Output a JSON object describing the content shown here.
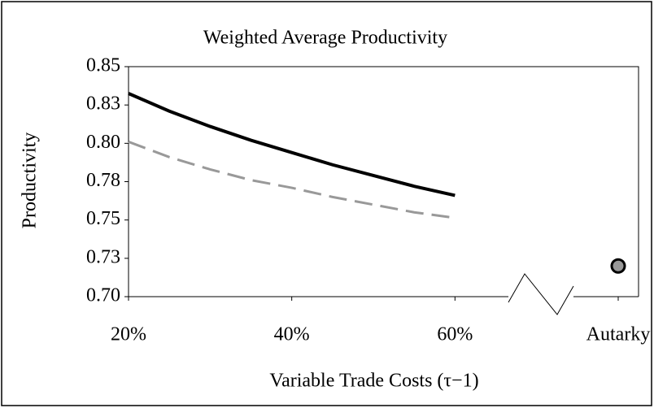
{
  "chart_data": {
    "type": "line",
    "title": "Weighted Average Productivity",
    "xlabel": "Variable Trade Costs (τ−1)",
    "ylabel": "Productivity",
    "xlim": [
      20,
      80
    ],
    "xticks": [
      {
        "value": 20,
        "label": "20%"
      },
      {
        "value": 40,
        "label": "40%"
      },
      {
        "value": 60,
        "label": "60%"
      },
      {
        "value": 80,
        "label": "Autarky"
      }
    ],
    "ylim": [
      0.7,
      0.85
    ],
    "yticks": [
      {
        "value": 0.7,
        "label": "0.70"
      },
      {
        "value": 0.725,
        "label": "0.73"
      },
      {
        "value": 0.75,
        "label": "0.75"
      },
      {
        "value": 0.775,
        "label": "0.78"
      },
      {
        "value": 0.8,
        "label": "0.80"
      },
      {
        "value": 0.825,
        "label": "0.83"
      },
      {
        "value": 0.85,
        "label": "0.85"
      }
    ],
    "series": [
      {
        "color": "#000000",
        "style": "solid",
        "x": [
          20,
          25,
          30,
          35,
          40,
          45,
          50,
          55,
          60
        ],
        "values": [
          0.8325,
          0.821,
          0.811,
          0.802,
          0.794,
          0.786,
          0.779,
          0.772,
          0.766
        ]
      },
      {
        "color": "#999999",
        "style": "dashed",
        "x": [
          20,
          25,
          30,
          35,
          40,
          45,
          50,
          55,
          60
        ],
        "values": [
          0.801,
          0.791,
          0.783,
          0.776,
          0.771,
          0.765,
          0.76,
          0.755,
          0.7514
        ]
      },
      {
        "color": "#999999",
        "style": "marker",
        "x": [
          80
        ],
        "values": [
          0.72
        ]
      }
    ]
  }
}
